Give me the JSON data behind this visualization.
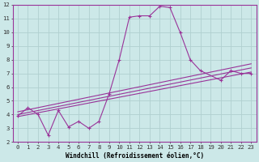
{
  "xlabel": "Windchill (Refroidissement éolien,°C)",
  "bg_color": "#cce8e8",
  "line_color": "#993399",
  "grid_color": "#b0d0d0",
  "xlim": [
    -0.5,
    23.5
  ],
  "ylim": [
    2,
    12
  ],
  "xticks": [
    0,
    1,
    2,
    3,
    4,
    5,
    6,
    7,
    8,
    9,
    10,
    11,
    12,
    13,
    14,
    15,
    16,
    17,
    18,
    19,
    20,
    21,
    22,
    23
  ],
  "yticks": [
    2,
    3,
    4,
    5,
    6,
    7,
    8,
    9,
    10,
    11,
    12
  ],
  "jagged_x": [
    0,
    1,
    2,
    3,
    4,
    5,
    6,
    7,
    8,
    9,
    10,
    11,
    12,
    13,
    14,
    15,
    16,
    17,
    18,
    20,
    21,
    22,
    23
  ],
  "jagged_y": [
    3.9,
    4.5,
    4.0,
    2.5,
    4.3,
    3.1,
    3.5,
    3.0,
    3.5,
    5.5,
    8.0,
    11.1,
    11.2,
    11.2,
    11.9,
    11.8,
    10.0,
    8.0,
    7.2,
    6.5,
    7.2,
    7.0,
    7.0
  ],
  "line1_x": [
    0,
    23
  ],
  "line1_y": [
    3.85,
    7.1
  ],
  "line2_x": [
    0,
    23
  ],
  "line2_y": [
    4.0,
    7.4
  ],
  "line3_x": [
    0,
    23
  ],
  "line3_y": [
    4.2,
    7.7
  ]
}
